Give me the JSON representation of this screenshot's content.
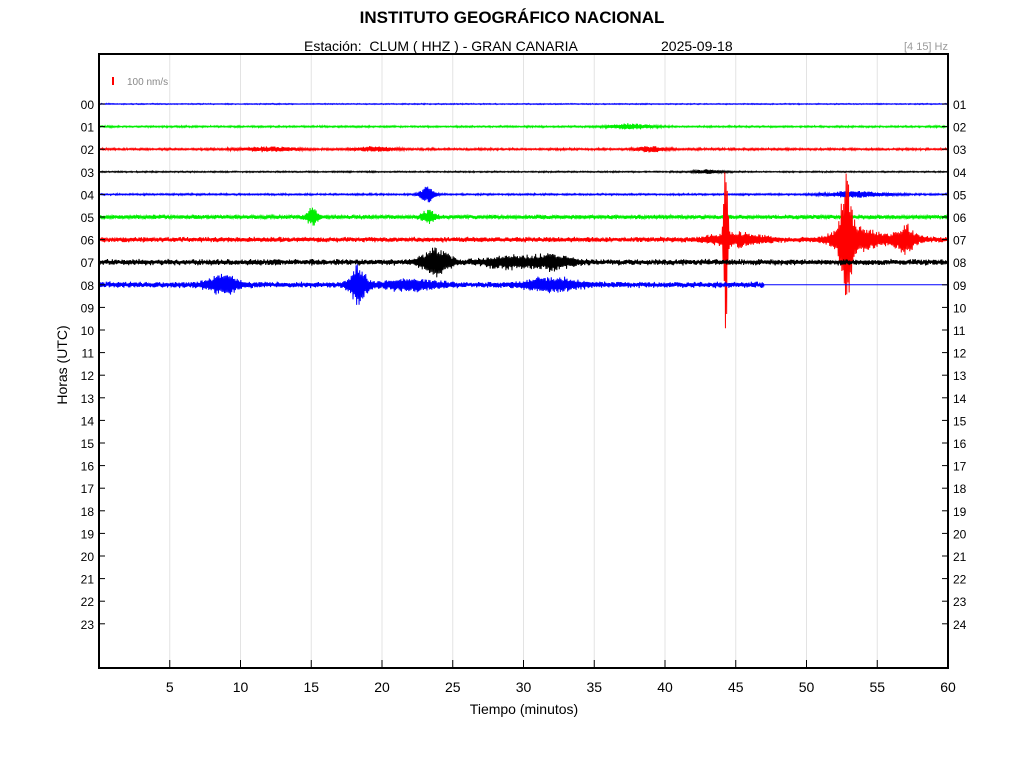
{
  "header": {
    "institution": "INSTITUTO GEOGRÁFICO NACIONAL",
    "station_prefix": "Estación:",
    "station": "CLUM ( HHZ ) - GRAN CANARIA",
    "date": "2025-09-18",
    "filter": "[4 15] Hz"
  },
  "chart_data": {
    "type": "line",
    "title": "INSTITUTO GEOGRÁFICO NACIONAL",
    "xlabel": "Tiempo (minutos)",
    "ylabel": "Horas (UTC)",
    "xlim": [
      0,
      60
    ],
    "x_ticks": [
      5,
      10,
      15,
      20,
      25,
      30,
      35,
      40,
      45,
      50,
      55,
      60
    ],
    "left_tick_labels": [
      "00",
      "01",
      "02",
      "03",
      "04",
      "05",
      "06",
      "07",
      "08",
      "09",
      "10",
      "11",
      "12",
      "13",
      "14",
      "15",
      "16",
      "17",
      "18",
      "19",
      "20",
      "21",
      "22",
      "23"
    ],
    "right_tick_labels": [
      "01",
      "02",
      "03",
      "04",
      "05",
      "06",
      "07",
      "08",
      "09",
      "10",
      "11",
      "12",
      "13",
      "14",
      "15",
      "16",
      "17",
      "18",
      "19",
      "20",
      "21",
      "22",
      "23",
      "24"
    ],
    "grid": "vertical",
    "scale_bar": {
      "label": "100 nm/s",
      "color": "#ff0000"
    },
    "recording_end": {
      "hour": 8,
      "minute": 47
    },
    "colors": [
      "#0000ff",
      "#00ee00",
      "#ff0000",
      "#000000"
    ],
    "series": [
      {
        "hour": 0,
        "color": "#0000ff",
        "noise": 0.6,
        "events": []
      },
      {
        "hour": 1,
        "color": "#00ee00",
        "noise": 1.0,
        "events": [
          {
            "t": 37.5,
            "amp": 2.5,
            "dur": 1.5
          }
        ]
      },
      {
        "hour": 2,
        "color": "#ff0000",
        "noise": 1.2,
        "events": [
          {
            "t": 12,
            "amp": 2,
            "dur": 2
          },
          {
            "t": 19.5,
            "amp": 2,
            "dur": 1.5
          },
          {
            "t": 39,
            "amp": 2.5,
            "dur": 1
          }
        ]
      },
      {
        "hour": 3,
        "color": "#000000",
        "noise": 0.8,
        "events": [
          {
            "t": 43,
            "amp": 2,
            "dur": 1
          }
        ]
      },
      {
        "hour": 4,
        "color": "#0000ff",
        "noise": 1.0,
        "events": [
          {
            "t": 23.2,
            "amp": 8,
            "dur": 0.5
          },
          {
            "t": 53.5,
            "amp": 3,
            "dur": 2
          }
        ]
      },
      {
        "hour": 5,
        "color": "#00ee00",
        "noise": 2.5,
        "events": [
          {
            "t": 15.1,
            "amp": 9,
            "dur": 0.4
          },
          {
            "t": 23.3,
            "amp": 6,
            "dur": 0.5
          }
        ]
      },
      {
        "hour": 6,
        "color": "#ff0000",
        "noise": 3.0,
        "events": [
          {
            "t": 44.3,
            "amp": 85,
            "dur": 0.15
          },
          {
            "t": 45,
            "amp": 6,
            "dur": 2
          },
          {
            "t": 52.8,
            "amp": 55,
            "dur": 0.4
          },
          {
            "t": 53.2,
            "amp": 10,
            "dur": 1.5
          },
          {
            "t": 55,
            "amp": 4,
            "dur": 3
          },
          {
            "t": 57,
            "amp": 12,
            "dur": 0.6
          }
        ]
      },
      {
        "hour": 7,
        "color": "#000000",
        "noise": 3.5,
        "events": [
          {
            "t": 23.8,
            "amp": 14,
            "dur": 1
          },
          {
            "t": 29,
            "amp": 5,
            "dur": 2
          },
          {
            "t": 32,
            "amp": 6,
            "dur": 1.5
          }
        ]
      },
      {
        "hour": 8,
        "color": "#0000ff",
        "noise": 3.5,
        "events": [
          {
            "t": 8.8,
            "amp": 8,
            "dur": 1.2
          },
          {
            "t": 18.3,
            "amp": 18,
            "dur": 0.6
          },
          {
            "t": 22,
            "amp": 5,
            "dur": 2
          },
          {
            "t": 32,
            "amp": 6,
            "dur": 2
          }
        ]
      }
    ]
  }
}
